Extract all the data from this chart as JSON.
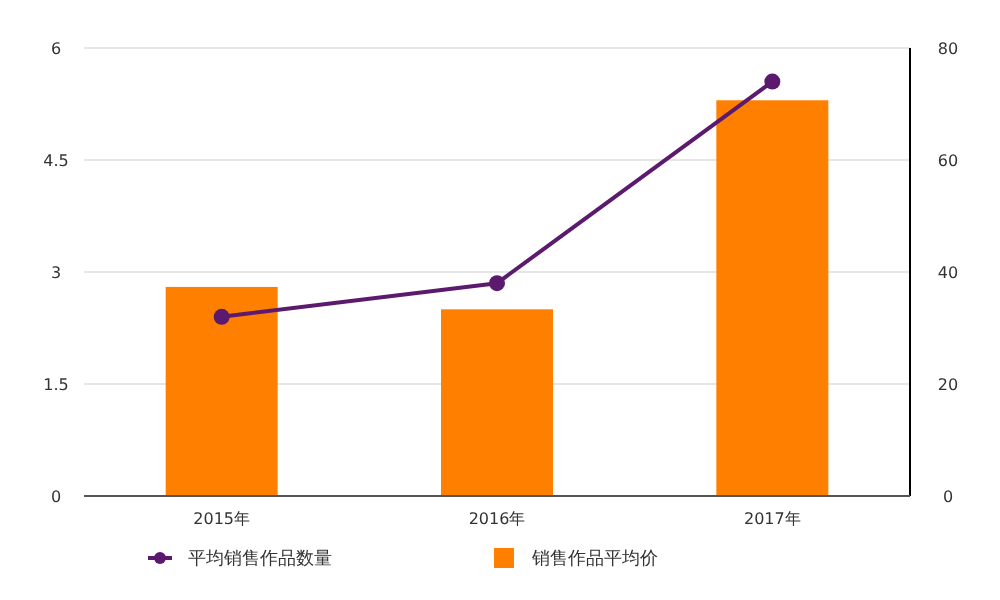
{
  "chart_data": {
    "type": "bar",
    "categories": [
      "2015年",
      "2016年",
      "2017年"
    ],
    "series": [
      {
        "name": "平均销售作品数量",
        "color": "#5b1a6e",
        "type": "line",
        "axis": "y2",
        "marker": "circle",
        "values": [
          32,
          38,
          74
        ]
      },
      {
        "name": "销售作品平均价",
        "color": "#ff7f00",
        "values": [
          2.8,
          2.5,
          5.3
        ]
      }
    ],
    "ylim": [
      0,
      6
    ],
    "yticks": [
      0,
      1.5,
      3,
      4.5,
      6
    ],
    "y2lim": [
      0,
      80
    ],
    "y2ticks": [
      0,
      20,
      40,
      60,
      80
    ],
    "grid": "y",
    "legend": "bottom"
  }
}
